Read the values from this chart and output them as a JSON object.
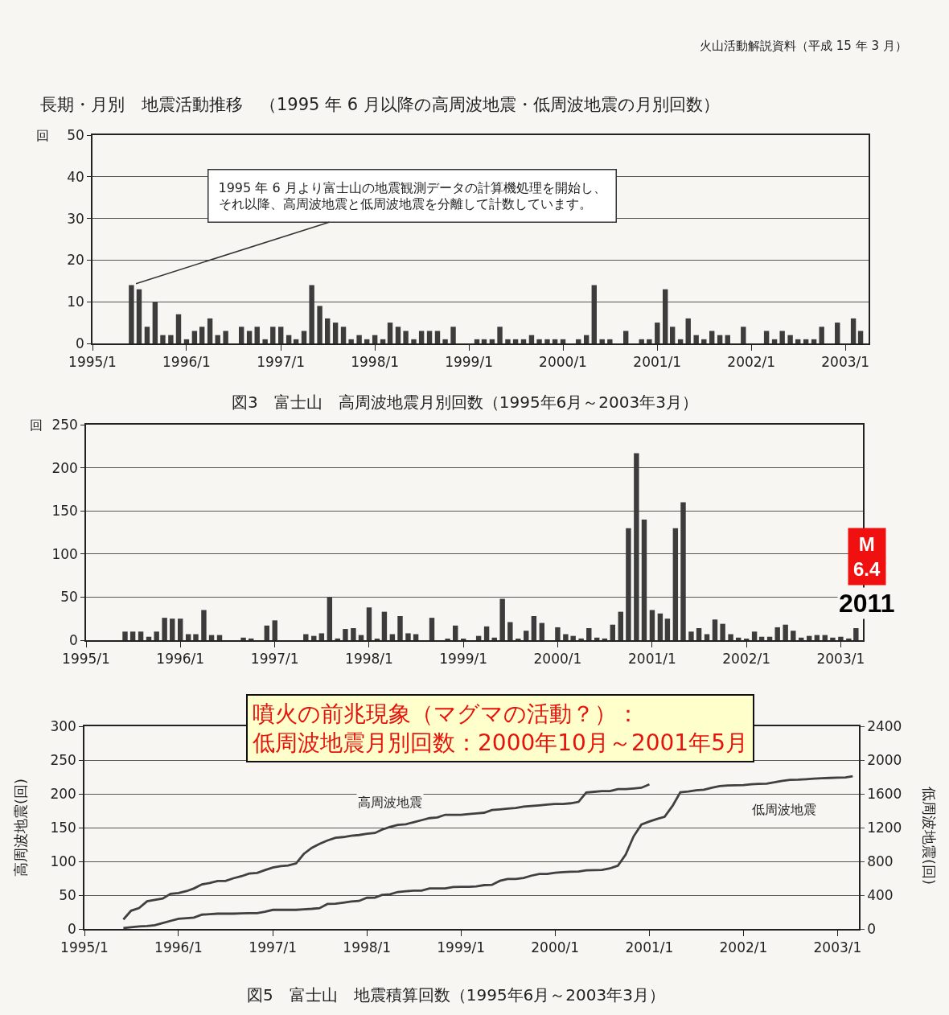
{
  "chart_data": [
    {
      "type": "bar",
      "title": "長期・月別　地震活動推移　（1995 年 6 月以降の高周波地震・低周波地震の月別回数）",
      "xlabel": "図3　富士山　高周波地震月別回数（1995年6月～2003年3月）",
      "ylabel": "回",
      "annotations": [
        "火山活動解説資料（平成 15 年 3 月）",
        {
          "text": "1995 年 6 月より富士山の地震観測データの計算機処理を開始し、それ以降、高周波地震と低周波地震を分離して計数しています。",
          "x": "1995-06",
          "y": 14
        }
      ],
      "x": [
        "1995-06",
        "1995-07",
        "1995-08",
        "1995-09",
        "1995-10",
        "1995-11",
        "1995-12",
        "1996-01",
        "1996-02",
        "1996-03",
        "1996-04",
        "1996-05",
        "1996-06",
        "1996-07",
        "1996-08",
        "1996-09",
        "1996-10",
        "1996-11",
        "1996-12",
        "1997-01",
        "1997-02",
        "1997-03",
        "1997-04",
        "1997-05",
        "1997-06",
        "1997-07",
        "1997-08",
        "1997-09",
        "1997-10",
        "1997-11",
        "1997-12",
        "1998-01",
        "1998-02",
        "1998-03",
        "1998-04",
        "1998-05",
        "1998-06",
        "1998-07",
        "1998-08",
        "1998-09",
        "1998-10",
        "1998-11",
        "1998-12",
        "1999-01",
        "1999-02",
        "1999-03",
        "1999-04",
        "1999-05",
        "1999-06",
        "1999-07",
        "1999-08",
        "1999-09",
        "1999-10",
        "1999-11",
        "1999-12",
        "2000-01",
        "2000-02",
        "2000-03",
        "2000-04",
        "2000-05",
        "2000-06",
        "2000-07",
        "2000-08",
        "2000-09",
        "2000-10",
        "2000-11",
        "2000-12",
        "2001-01",
        "2001-02",
        "2001-03",
        "2001-04",
        "2001-05",
        "2001-06",
        "2001-07",
        "2001-08",
        "2001-09",
        "2001-10",
        "2001-11",
        "2001-12",
        "2002-01",
        "2002-02",
        "2002-03",
        "2002-04",
        "2002-05",
        "2002-06",
        "2002-07",
        "2002-08",
        "2002-09",
        "2002-10",
        "2002-11",
        "2002-12",
        "2003-01",
        "2003-02",
        "2003-03"
      ],
      "series": [
        {
          "color": "#3c3c3c",
          "values": [
            14,
            13,
            4,
            10,
            2,
            2,
            7,
            1,
            3,
            4,
            6,
            2,
            3,
            0,
            4,
            3,
            4,
            1,
            4,
            4,
            2,
            1,
            3,
            14,
            9,
            6,
            5,
            4,
            1,
            2,
            1,
            2,
            1,
            5,
            4,
            3,
            1,
            3,
            3,
            3,
            1,
            4,
            0,
            0,
            1,
            1,
            1,
            4,
            1,
            1,
            1,
            2,
            1,
            1,
            1,
            1,
            0,
            1,
            2,
            14,
            1,
            1,
            0,
            3,
            0,
            1,
            1,
            5,
            13,
            4,
            1,
            6,
            2,
            1,
            3,
            2,
            2,
            0,
            4,
            0,
            0,
            3,
            1,
            3,
            2,
            1,
            1,
            1,
            4,
            0,
            5,
            0,
            6,
            3
          ]
        }
      ],
      "xlim": [
        "1995-01-01",
        "2003-04-01"
      ],
      "ylim": [
        0,
        50
      ],
      "yticks": [
        0,
        10,
        20,
        30,
        40,
        50
      ],
      "xticks": [
        {
          "value": "1995-01",
          "label": "1995/1"
        },
        {
          "value": "1996-01",
          "label": "1996/1"
        },
        {
          "value": "1997-01",
          "label": "1997/1"
        },
        {
          "value": "1998-01",
          "label": "1998/1"
        },
        {
          "value": "1999-01",
          "label": "1999/1"
        },
        {
          "value": "2000-01",
          "label": "2000/1"
        },
        {
          "value": "2001-01",
          "label": "2001/1"
        },
        {
          "value": "2002-01",
          "label": "2002/1"
        },
        {
          "value": "2003-01",
          "label": "2003/1"
        }
      ],
      "grid": "y"
    },
    {
      "type": "bar",
      "ylabel": "回",
      "annotations": [
        "噴火の前兆現象（マグマの活動？）：低周波地震月別回数：2000年10月～2001年5月",
        "M\n6.4",
        "2011"
      ],
      "x": [
        "1995-06",
        "1995-07",
        "1995-08",
        "1995-09",
        "1995-10",
        "1995-11",
        "1995-12",
        "1996-01",
        "1996-02",
        "1996-03",
        "1996-04",
        "1996-05",
        "1996-06",
        "1996-07",
        "1996-08",
        "1996-09",
        "1996-10",
        "1996-11",
        "1996-12",
        "1997-01",
        "1997-02",
        "1997-03",
        "1997-04",
        "1997-05",
        "1997-06",
        "1997-07",
        "1997-08",
        "1997-09",
        "1997-10",
        "1997-11",
        "1997-12",
        "1998-01",
        "1998-02",
        "1998-03",
        "1998-04",
        "1998-05",
        "1998-06",
        "1998-07",
        "1998-08",
        "1998-09",
        "1998-10",
        "1998-11",
        "1998-12",
        "1999-01",
        "1999-02",
        "1999-03",
        "1999-04",
        "1999-05",
        "1999-06",
        "1999-07",
        "1999-08",
        "1999-09",
        "1999-10",
        "1999-11",
        "1999-12",
        "2000-01",
        "2000-02",
        "2000-03",
        "2000-04",
        "2000-05",
        "2000-06",
        "2000-07",
        "2000-08",
        "2000-09",
        "2000-10",
        "2000-11",
        "2000-12",
        "2001-01",
        "2001-02",
        "2001-03",
        "2001-04",
        "2001-05",
        "2001-06",
        "2001-07",
        "2001-08",
        "2001-09",
        "2001-10",
        "2001-11",
        "2001-12",
        "2002-01",
        "2002-02",
        "2002-03",
        "2002-04",
        "2002-05",
        "2002-06",
        "2002-07",
        "2002-08",
        "2002-09",
        "2002-10",
        "2002-11",
        "2002-12",
        "2003-01",
        "2003-02",
        "2003-03"
      ],
      "series": [
        {
          "color": "#3c3c3c",
          "values": [
            10,
            10,
            10,
            4,
            10,
            26,
            25,
            25,
            7,
            7,
            35,
            6,
            6,
            0,
            0,
            3,
            2,
            0,
            17,
            23,
            0,
            0,
            0,
            7,
            5,
            8,
            50,
            2,
            13,
            14,
            6,
            38,
            1,
            33,
            7,
            28,
            8,
            7,
            0,
            26,
            0,
            1,
            17,
            1,
            0,
            5,
            16,
            3,
            48,
            21,
            1,
            11,
            28,
            20,
            0,
            15,
            7,
            5,
            2,
            14,
            3,
            2,
            18,
            33,
            130,
            217,
            140,
            35,
            31,
            25,
            130,
            160,
            10,
            14,
            7,
            24,
            19,
            7,
            3,
            1,
            10,
            4,
            4,
            15,
            18,
            11,
            3,
            5,
            6,
            6,
            3,
            4,
            2,
            14
          ]
        }
      ],
      "xlim": [
        "1995-01-01",
        "2003-03-28"
      ],
      "ylim": [
        0,
        250
      ],
      "yticks": [
        0,
        50,
        100,
        150,
        200,
        250
      ],
      "xticks": [
        {
          "value": "1995-01",
          "label": "1995/1"
        },
        {
          "value": "1996-01",
          "label": "1996/1"
        },
        {
          "value": "1997-01",
          "label": "1997/1"
        },
        {
          "value": "1998-01",
          "label": "1998/1"
        },
        {
          "value": "1999-01",
          "label": "1999/1"
        },
        {
          "value": "2000-01",
          "label": "2000/1"
        },
        {
          "value": "2001-01",
          "label": "2001/1"
        },
        {
          "value": "2002-01",
          "label": "2002/1"
        },
        {
          "value": "2003-01",
          "label": "2003/1"
        }
      ],
      "grid": "y"
    },
    {
      "type": "line",
      "xlabel": "図5　富士山　地震積算回数（1995年6月～2003年3月）",
      "ylabel": "高周波地震(回)",
      "y2label": "低周波地震(回)",
      "x": [
        "1995-06",
        "1995-07",
        "1995-08",
        "1995-09",
        "1995-10",
        "1995-11",
        "1995-12",
        "1996-01",
        "1996-02",
        "1996-03",
        "1996-04",
        "1996-05",
        "1996-06",
        "1996-07",
        "1996-08",
        "1996-09",
        "1996-10",
        "1996-11",
        "1996-12",
        "1997-01",
        "1997-02",
        "1997-03",
        "1997-04",
        "1997-05",
        "1997-06",
        "1997-07",
        "1997-08",
        "1997-09",
        "1997-10",
        "1997-11",
        "1997-12",
        "1998-01",
        "1998-02",
        "1998-03",
        "1998-04",
        "1998-05",
        "1998-06",
        "1998-07",
        "1998-08",
        "1998-09",
        "1998-10",
        "1998-11",
        "1998-12",
        "1999-01",
        "1999-02",
        "1999-03",
        "1999-04",
        "1999-05",
        "1999-06",
        "1999-07",
        "1999-08",
        "1999-09",
        "1999-10",
        "1999-11",
        "1999-12",
        "2000-01",
        "2000-02",
        "2000-03",
        "2000-04",
        "2000-05",
        "2000-06",
        "2000-07",
        "2000-08",
        "2000-09",
        "2000-10",
        "2000-11",
        "2000-12",
        "2001-01",
        "2001-02",
        "2001-03",
        "2001-04",
        "2001-05",
        "2001-06",
        "2001-07",
        "2001-08",
        "2001-09",
        "2001-10",
        "2001-11",
        "2001-12",
        "2002-01",
        "2002-02",
        "2002-03",
        "2002-04",
        "2002-05",
        "2002-06",
        "2002-07",
        "2002-08",
        "2002-09",
        "2002-10",
        "2002-11",
        "2002-12",
        "2003-01",
        "2003-02",
        "2003-03"
      ],
      "series": [
        {
          "name": "高周波地震",
          "color": "#404040",
          "values": [
            14,
            27,
            31,
            41,
            43,
            45,
            52,
            53,
            56,
            60,
            66,
            68,
            71,
            71,
            75,
            78,
            82,
            83,
            87,
            91,
            93,
            94,
            97,
            111,
            120,
            126,
            131,
            135,
            136,
            138,
            139,
            141,
            142,
            147,
            151,
            154,
            155,
            158,
            161,
            164,
            165,
            169,
            169,
            169,
            170,
            171,
            172,
            176,
            177,
            178,
            179,
            181,
            182,
            183,
            184,
            185,
            185,
            186,
            188,
            202,
            203,
            204,
            204,
            207,
            207,
            208,
            209,
            214,
            null,
            null,
            null,
            null,
            null,
            null,
            null,
            null,
            null,
            null,
            null,
            null,
            null,
            null,
            null,
            null,
            null,
            null,
            null,
            null,
            null,
            null,
            null,
            null,
            null,
            null
          ]
        },
        {
          "name": "低周波地震",
          "color": "#404040",
          "axis": "y2",
          "values": [
            10,
            20,
            30,
            34,
            44,
            70,
            95,
            120,
            127,
            134,
            169,
            175,
            181,
            181,
            181,
            184,
            186,
            186,
            203,
            226,
            226,
            226,
            226,
            233,
            238,
            246,
            296,
            298,
            311,
            325,
            331,
            369,
            370,
            403,
            410,
            438,
            446,
            453,
            453,
            479,
            479,
            480,
            497,
            498,
            498,
            503,
            519,
            522,
            570,
            591,
            592,
            603,
            631,
            651,
            651,
            666,
            673,
            678,
            680,
            694,
            697,
            699,
            717,
            750,
            880,
            1097,
            1237,
            1272,
            1303,
            1328,
            1458,
            1618,
            1628,
            1642,
            1649,
            1673,
            1692,
            1699,
            1702,
            1703,
            1713,
            1717,
            1721,
            1736,
            1754,
            1765,
            1768,
            1773,
            1779,
            1785,
            1788,
            1792,
            1794,
            1808
          ]
        }
      ],
      "xlim": [
        "1995-01-01",
        "2003-03-25"
      ],
      "ylim": [
        0,
        300
      ],
      "yticks": [
        0,
        50,
        100,
        150,
        200,
        250,
        300
      ],
      "y2lim": [
        0,
        2400
      ],
      "y2ticks": [
        0,
        400,
        800,
        1200,
        1600,
        2000,
        2400
      ],
      "xticks": [
        {
          "value": "1995-01",
          "label": "1995/1"
        },
        {
          "value": "1996-01",
          "label": "1996/1"
        },
        {
          "value": "1997-01",
          "label": "1997/1"
        },
        {
          "value": "1998-01",
          "label": "1998/1"
        },
        {
          "value": "1999-01",
          "label": "1999/1"
        },
        {
          "value": "2000-01",
          "label": "2000/1"
        },
        {
          "value": "2001-01",
          "label": "2001/1"
        },
        {
          "value": "2002-01",
          "label": "2002/1"
        },
        {
          "value": "2003-01",
          "label": "2003/1"
        }
      ],
      "grid": "y",
      "line_style": "solid",
      "marker": "none"
    }
  ]
}
